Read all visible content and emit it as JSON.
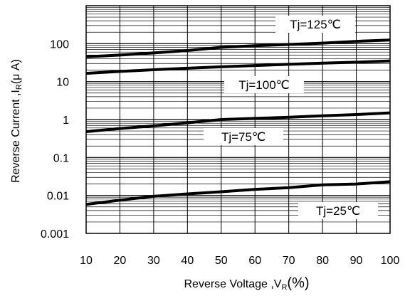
{
  "chart_data": {
    "type": "line",
    "title": "",
    "xlabel": "Reverse Voltage ,V",
    "xlabel_sub": "R",
    "xlabel_unit": "(%)",
    "ylabel": "Reverse Current ,I",
    "ylabel_sub": "R",
    "ylabel_unit": "(μ A)",
    "xlim": [
      10,
      100
    ],
    "ylim": [
      0.001,
      1000
    ],
    "yscale": "log",
    "grid": true,
    "x_ticks": [
      10,
      20,
      30,
      40,
      50,
      60,
      70,
      80,
      90,
      100
    ],
    "x_tick_labels": [
      "10",
      "20",
      "30",
      "40",
      "50",
      "60",
      "70",
      "80",
      "90",
      "100"
    ],
    "y_ticks": [
      0.001,
      0.01,
      0.1,
      1,
      10,
      100
    ],
    "y_tick_labels": [
      "0.001",
      "0.01",
      "0.1",
      "1",
      "10",
      "100"
    ],
    "x": [
      10,
      20,
      30,
      40,
      50,
      60,
      70,
      80,
      90,
      100
    ],
    "series": [
      {
        "name": "Tj=125℃",
        "values": [
          45,
          50,
          57,
          66,
          80,
          88,
          95,
          103,
          115,
          125
        ]
      },
      {
        "name": "Tj=100℃",
        "values": [
          16.5,
          18.5,
          20.5,
          22.5,
          24.5,
          26.5,
          28.5,
          30.5,
          32.5,
          35
        ]
      },
      {
        "name": "Tj=75℃",
        "values": [
          0.48,
          0.58,
          0.68,
          0.82,
          1.0,
          1.07,
          1.15,
          1.25,
          1.35,
          1.5
        ]
      },
      {
        "name": "Tj=25℃",
        "values": [
          0.0058,
          0.0075,
          0.0095,
          0.011,
          0.0125,
          0.0145,
          0.016,
          0.019,
          0.02,
          0.023
        ]
      }
    ]
  }
}
